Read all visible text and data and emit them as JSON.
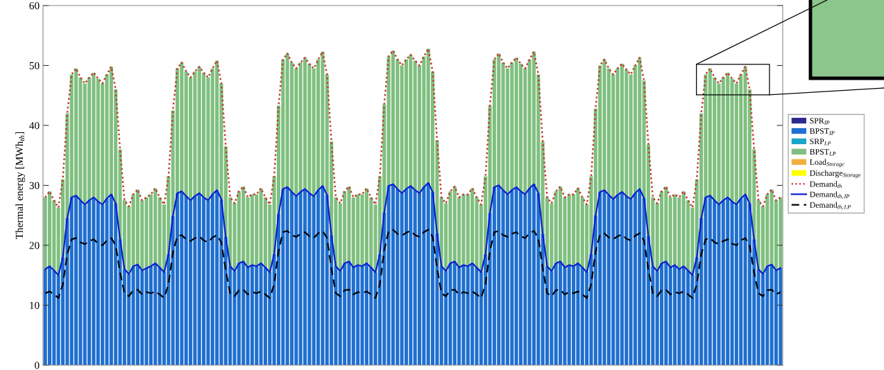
{
  "chart_data": {
    "type": "bar",
    "stacked": true,
    "ylabel": "Thermal energy [MWh$_{th}$]",
    "categories": [
      null,
      null,
      null,
      null,
      null,
      null,
      null,
      null,
      null,
      null,
      null,
      null,
      null,
      null,
      null,
      null,
      null,
      null,
      null,
      null,
      null,
      null,
      null,
      null,
      null,
      null,
      null,
      null,
      null,
      null,
      null,
      null,
      null,
      null,
      null,
      null,
      null,
      null,
      null,
      null,
      null,
      null,
      null,
      null,
      null,
      null,
      null,
      null,
      null,
      null,
      null,
      null,
      null,
      null,
      null,
      null,
      null,
      null,
      null,
      null,
      null,
      null,
      null,
      null,
      null,
      null,
      null,
      null,
      null,
      null,
      null,
      null,
      null,
      null,
      null,
      null,
      null,
      null,
      null,
      null,
      null,
      null,
      null,
      null,
      null,
      null,
      null,
      null,
      null,
      null,
      null,
      null,
      null,
      null,
      null,
      null,
      null,
      null,
      null,
      null,
      null,
      null,
      null,
      null,
      null,
      null,
      null,
      null,
      null,
      null,
      null,
      null,
      null,
      null,
      null,
      null,
      null,
      null,
      null,
      null,
      null,
      null,
      null,
      null,
      null,
      null,
      null,
      null,
      null,
      null,
      null,
      null,
      null,
      null,
      null,
      null,
      null,
      null,
      null,
      null,
      null,
      null,
      null,
      null,
      null,
      null,
      null,
      null,
      null,
      null,
      null,
      null,
      null,
      null,
      null,
      null,
      null,
      null,
      null,
      null,
      null,
      null,
      null,
      null,
      null,
      null,
      null,
      null
    ],
    "ylim": [
      0,
      60
    ],
    "yticks": [
      0,
      10,
      20,
      30,
      40,
      50,
      60
    ],
    "grid": false,
    "legend": "right",
    "marker": "none",
    "series": [
      {
        "name": "SPR$_{IP}$",
        "color": "#2e2a8c",
        "values": [
          0,
          0,
          0,
          0,
          0,
          0,
          0,
          0,
          0,
          0,
          0,
          0,
          0,
          0,
          0,
          0,
          0,
          0,
          0,
          0,
          0,
          0,
          0,
          0,
          0,
          0,
          0,
          0,
          0,
          0,
          0,
          0,
          0,
          0,
          0,
          0,
          0,
          0,
          0,
          0,
          0,
          0,
          0,
          0,
          0,
          0,
          0,
          0,
          0,
          0,
          0,
          0,
          0,
          0,
          0,
          0,
          0,
          0,
          0,
          0,
          0,
          0,
          0,
          0,
          0,
          0,
          0,
          0,
          0,
          0,
          0,
          0,
          0,
          0,
          0,
          0,
          0,
          0,
          0,
          0,
          0,
          0,
          0,
          0,
          0,
          0,
          0,
          0,
          0,
          0,
          0,
          0,
          0,
          0,
          0,
          0,
          0,
          0,
          0,
          0,
          0,
          0,
          0,
          0,
          0,
          0,
          0,
          0,
          0,
          0,
          0,
          0,
          0,
          0,
          0,
          0,
          0,
          0,
          0,
          0,
          0,
          0,
          0,
          0,
          0,
          0,
          0,
          0,
          0,
          0,
          0,
          0,
          0,
          0,
          0,
          0,
          0,
          0,
          0,
          0,
          0,
          0,
          0,
          0,
          0,
          0,
          0,
          0,
          0,
          0,
          0,
          0,
          0,
          0,
          0,
          0,
          0,
          0,
          0,
          0,
          0,
          0,
          0,
          0,
          0,
          0,
          0,
          0
        ]
      },
      {
        "name": "BPST$_{IP}$",
        "color": "#1f6fd0",
        "values": [
          16,
          16.5,
          15.8,
          15,
          18,
          24.5,
          28,
          28.3,
          27.5,
          26.8,
          27.5,
          28,
          27.3,
          26.8,
          27.8,
          28.5,
          27,
          21,
          16,
          15.2,
          16.5,
          16.8,
          15.8,
          16.2,
          16.5,
          17,
          16.3,
          15.5,
          18.5,
          24.9,
          28.7,
          29,
          28.2,
          27.5,
          28.2,
          28.7,
          28,
          27.5,
          28.5,
          29.2,
          27.7,
          21.4,
          16.5,
          15.7,
          17,
          17.3,
          16.3,
          16.7,
          16.5,
          17,
          16.3,
          15.5,
          18.5,
          25.2,
          29.4,
          29.7,
          28.9,
          28.2,
          28.9,
          29.4,
          28.7,
          28.2,
          29.2,
          29.9,
          28.4,
          21.7,
          16.5,
          15.7,
          17,
          17.3,
          16.3,
          16.7,
          16.5,
          17,
          16.3,
          15.5,
          18.5,
          25.5,
          29.9,
          30.2,
          29.4,
          28.7,
          29.4,
          29.9,
          29.2,
          28.7,
          29.7,
          30.4,
          28.9,
          22,
          16.5,
          15.7,
          17,
          17.3,
          16.3,
          16.7,
          16.5,
          17,
          16.3,
          15.5,
          18.5,
          25.4,
          29.7,
          30,
          29.2,
          28.5,
          29.2,
          29.7,
          29,
          28.5,
          29.5,
          30.2,
          28.7,
          21.9,
          16.5,
          15.7,
          17,
          17.3,
          16.3,
          16.7,
          16.5,
          17,
          16.3,
          15.5,
          18.5,
          25,
          28.9,
          29.2,
          28.4,
          27.7,
          28.4,
          28.9,
          28.2,
          27.7,
          28.7,
          29.4,
          27.9,
          21.5,
          16.5,
          15.7,
          17,
          17.3,
          16.3,
          16.7,
          16,
          16.5,
          15.8,
          15,
          18,
          24.5,
          28,
          28.3,
          27.5,
          26.8,
          27.5,
          28,
          27.3,
          26.8,
          27.8,
          28.5,
          27,
          21,
          16,
          15.2,
          16.5,
          16.8,
          15.8,
          16.2
        ]
      },
      {
        "name": "SRP$_{LP}$",
        "color": "#1aa6c8",
        "values": [
          0,
          0,
          0,
          0,
          0,
          0,
          0,
          0,
          0,
          0,
          0,
          0,
          0,
          0,
          0,
          0,
          0,
          0,
          0,
          0,
          0,
          0,
          0,
          0,
          0,
          0,
          0,
          0,
          0,
          0,
          0,
          0,
          0,
          0,
          0,
          0,
          0,
          0,
          0,
          0,
          0,
          0,
          0,
          0,
          0,
          0,
          0,
          0,
          0,
          0,
          0,
          0,
          0,
          0,
          0,
          0,
          0,
          0,
          0,
          0,
          0,
          0,
          0,
          0,
          0,
          0,
          0,
          0,
          0,
          0,
          0,
          0,
          0,
          0,
          0,
          0,
          0,
          0,
          0,
          0,
          0,
          0,
          0,
          0,
          0,
          0,
          0,
          0,
          0,
          0,
          0,
          0,
          0,
          0,
          0,
          0,
          0,
          0,
          0,
          0,
          0,
          0,
          0,
          0,
          0,
          0,
          0,
          0,
          0,
          0,
          0,
          0,
          0,
          0,
          0,
          0,
          0,
          0,
          0,
          0,
          0,
          0,
          0,
          0,
          0,
          0,
          0,
          0,
          0,
          0,
          0,
          0,
          0,
          0,
          0,
          0,
          0,
          0,
          0,
          0,
          0,
          0,
          0,
          0,
          0,
          0,
          0,
          0,
          0,
          0,
          0,
          0,
          0,
          0,
          0,
          0,
          0,
          0,
          0,
          0,
          0,
          0,
          0,
          0,
          0,
          0,
          0,
          0
        ]
      },
      {
        "name": "BPST$_{LP}$",
        "color": "#7fbf7f",
        "values": [
          12,
          12.5,
          11.7,
          11.3,
          13,
          17.5,
          20.5,
          21.2,
          20.5,
          20.2,
          20.5,
          20.8,
          20.5,
          20.2,
          20.7,
          21.3,
          19,
          15,
          11.5,
          11.3,
          12,
          12.5,
          11.7,
          11.8,
          12,
          12.5,
          11.7,
          11.3,
          13,
          17.6,
          20.8,
          21.5,
          20.8,
          20.5,
          20.8,
          21.1,
          20.8,
          20.5,
          21,
          21.6,
          19.3,
          15.1,
          11.5,
          11.3,
          12,
          12.5,
          11.7,
          11.8,
          12,
          12.5,
          11.7,
          11.3,
          13,
          18.1,
          21.6,
          22.3,
          21.6,
          21.3,
          21.6,
          21.9,
          21.6,
          21.3,
          21.8,
          22.4,
          20.1,
          15.6,
          11.5,
          11.3,
          12,
          12.5,
          11.7,
          11.8,
          12,
          12.5,
          11.7,
          11.3,
          13,
          18,
          21.6,
          22.3,
          21.6,
          21.3,
          21.6,
          21.9,
          21.6,
          21.3,
          21.8,
          22.4,
          20.1,
          15.5,
          11.5,
          11.3,
          12,
          12.5,
          11.7,
          11.8,
          12,
          12.5,
          11.7,
          11.3,
          13,
          17.9,
          21.3,
          22,
          21.3,
          21,
          21.3,
          21.6,
          21.3,
          21,
          21.5,
          22.1,
          19.8,
          15.4,
          11.5,
          11.3,
          12,
          12.5,
          11.7,
          11.8,
          12,
          12.5,
          11.7,
          11.3,
          13,
          17.8,
          21.1,
          21.8,
          21.1,
          20.8,
          21.1,
          21.4,
          21.1,
          20.8,
          21.3,
          21.9,
          19.6,
          15.3,
          11.5,
          11.3,
          12,
          12.5,
          11.7,
          11.8,
          12,
          12.5,
          11.7,
          11.3,
          13,
          17.5,
          20.5,
          21.2,
          20.5,
          20.2,
          20.5,
          20.8,
          20.5,
          20.2,
          20.7,
          21.3,
          19,
          15,
          11.5,
          11.3,
          12,
          12.5,
          11.7,
          11.8
        ]
      },
      {
        "name": "Load$_{Storage}$",
        "color": "#f0b040",
        "values": [
          0,
          0,
          0,
          0,
          0,
          0,
          0,
          0,
          0,
          0,
          0,
          0,
          0,
          0,
          0,
          0,
          0,
          0,
          0,
          0,
          0,
          0,
          0,
          0,
          0,
          0,
          0,
          0,
          0,
          0,
          0,
          0,
          0,
          0,
          0,
          0,
          0,
          0,
          0,
          0,
          0,
          0,
          0,
          0,
          0,
          0,
          0,
          0,
          0,
          0,
          0,
          0,
          0,
          0,
          0,
          0,
          0,
          0,
          0,
          0,
          0,
          0,
          0,
          0,
          0,
          0,
          0,
          0,
          0,
          0,
          0,
          0,
          0,
          0,
          0,
          0,
          0,
          0,
          0,
          0,
          0,
          0,
          0,
          0,
          0,
          0,
          0,
          0,
          0,
          0,
          0,
          0,
          0,
          0,
          0,
          0,
          0,
          0,
          0,
          0,
          0,
          0,
          0,
          0,
          0,
          0,
          0,
          0,
          0,
          0,
          0,
          0,
          0,
          0,
          0,
          0,
          0,
          0,
          0,
          0,
          0,
          0,
          0,
          0,
          0,
          0,
          0,
          0,
          0,
          0,
          0,
          0,
          0,
          0,
          0,
          0,
          0,
          0,
          0,
          0,
          0,
          0,
          0,
          0,
          0,
          0,
          0,
          0,
          0,
          0,
          0,
          0,
          0,
          0,
          0,
          0,
          0,
          0,
          0,
          0,
          0,
          0,
          0,
          0,
          0,
          0,
          0,
          0
        ]
      },
      {
        "name": "Discharge$_{Storage}$",
        "color": "#ffff00",
        "values": [
          0,
          0,
          0,
          0,
          0,
          0,
          0,
          0,
          0,
          0,
          0,
          0,
          0,
          0,
          0,
          0,
          0,
          0,
          0,
          0,
          0,
          0,
          0,
          0,
          0,
          0,
          0,
          0,
          0,
          0,
          0,
          0,
          0,
          0,
          0,
          0,
          0,
          0,
          0,
          0,
          0,
          0,
          0,
          0,
          0,
          0,
          0,
          0,
          0,
          0,
          0,
          0,
          0,
          0,
          0,
          0,
          0,
          0,
          0,
          0,
          0,
          0,
          0,
          0,
          0,
          0,
          0,
          0,
          0,
          0,
          0,
          0,
          0,
          0,
          0,
          0,
          0,
          0,
          0,
          0,
          0,
          0,
          0,
          0,
          0,
          0,
          0,
          0,
          0,
          0,
          0,
          0,
          0,
          0,
          0,
          0,
          0,
          0,
          0,
          0,
          0,
          0,
          0,
          0,
          0,
          0,
          0,
          0,
          0,
          0,
          0,
          0,
          0,
          0,
          0,
          0,
          0,
          0,
          0,
          0,
          0,
          0,
          0,
          0,
          0,
          0,
          0,
          0,
          0,
          0,
          0,
          0,
          0,
          0,
          0,
          0,
          0,
          0,
          0,
          0,
          0,
          0,
          0,
          0,
          0,
          0,
          0,
          0,
          0,
          0,
          0,
          0,
          0,
          0,
          0,
          0,
          0,
          0,
          0,
          0,
          0,
          0,
          0,
          0,
          0,
          0,
          0,
          0
        ]
      },
      {
        "name": "Demand$_{th}$",
        "type": "line",
        "line_style": "dotted",
        "color": "#c0392b",
        "values": [
          28,
          29,
          27.5,
          26.3,
          31,
          42,
          48.5,
          49.5,
          48,
          47,
          48,
          48.8,
          47.8,
          47,
          48.5,
          49.8,
          46,
          36,
          27.5,
          26.5,
          28.5,
          29.3,
          27.5,
          28,
          28.5,
          29.5,
          28,
          26.8,
          31.5,
          42.5,
          49.5,
          50.5,
          49,
          48,
          49,
          49.8,
          48.8,
          48,
          49.5,
          50.8,
          47,
          36.5,
          28,
          27,
          29,
          29.8,
          28,
          28.5,
          28.5,
          29.5,
          28,
          26.8,
          31.5,
          43.3,
          51,
          52,
          50.5,
          49.5,
          50.5,
          51.3,
          50.3,
          49.5,
          51,
          52.3,
          48.5,
          37.3,
          28,
          27,
          29,
          29.8,
          28,
          28.5,
          28.5,
          29.5,
          28,
          26.8,
          31.5,
          43.5,
          51.5,
          52.5,
          51,
          50,
          51,
          51.8,
          50.8,
          50,
          51.5,
          52.8,
          49,
          37.5,
          28,
          27,
          29,
          29.8,
          28,
          28.5,
          28.5,
          29.5,
          28,
          26.8,
          31.5,
          43.3,
          51,
          52,
          50.5,
          49.5,
          50.5,
          51.3,
          50.3,
          49.5,
          51,
          52.3,
          48.5,
          37.3,
          28,
          27,
          29,
          29.8,
          28,
          28.5,
          28.5,
          29.5,
          28,
          26.8,
          31.5,
          42.8,
          50,
          51,
          49.5,
          48.5,
          49.5,
          50.3,
          49.3,
          48.5,
          50,
          51.3,
          47.5,
          36.8,
          28,
          27,
          29,
          29.8,
          28,
          28.5,
          28,
          29,
          27.5,
          26.3,
          31,
          42,
          48.5,
          49.5,
          48,
          47,
          48,
          48.8,
          47.8,
          47,
          48.5,
          49.8,
          46,
          36,
          27.5,
          26.5,
          28.5,
          29.3,
          27.5,
          28
        ]
      },
      {
        "name": "Demand$_{th,IP}$",
        "type": "line",
        "line_style": "solid",
        "color": "#0a1fd1",
        "values": [
          16,
          16.5,
          15.8,
          15,
          18,
          24.5,
          28,
          28.3,
          27.5,
          26.8,
          27.5,
          28,
          27.3,
          26.8,
          27.8,
          28.5,
          27,
          21,
          16,
          15.2,
          16.5,
          16.8,
          15.8,
          16.2,
          16.5,
          17,
          16.3,
          15.5,
          18.5,
          24.9,
          28.7,
          29,
          28.2,
          27.5,
          28.2,
          28.7,
          28,
          27.5,
          28.5,
          29.2,
          27.7,
          21.4,
          16.5,
          15.7,
          17,
          17.3,
          16.3,
          16.7,
          16.5,
          17,
          16.3,
          15.5,
          18.5,
          25.2,
          29.4,
          29.7,
          28.9,
          28.2,
          28.9,
          29.4,
          28.7,
          28.2,
          29.2,
          29.9,
          28.4,
          21.7,
          16.5,
          15.7,
          17,
          17.3,
          16.3,
          16.7,
          16.5,
          17,
          16.3,
          15.5,
          18.5,
          25.5,
          29.9,
          30.2,
          29.4,
          28.7,
          29.4,
          29.9,
          29.2,
          28.7,
          29.7,
          30.4,
          28.9,
          22,
          16.5,
          15.7,
          17,
          17.3,
          16.3,
          16.7,
          16.5,
          17,
          16.3,
          15.5,
          18.5,
          25.4,
          29.7,
          30,
          29.2,
          28.5,
          29.2,
          29.7,
          29,
          28.5,
          29.5,
          30.2,
          28.7,
          21.9,
          16.5,
          15.7,
          17,
          17.3,
          16.3,
          16.7,
          16.5,
          17,
          16.3,
          15.5,
          18.5,
          25,
          28.9,
          29.2,
          28.4,
          27.7,
          28.4,
          28.9,
          28.2,
          27.7,
          28.7,
          29.4,
          27.9,
          21.5,
          16.5,
          15.7,
          17,
          17.3,
          16.3,
          16.7,
          16,
          16.5,
          15.8,
          15,
          18,
          24.5,
          28,
          28.3,
          27.5,
          26.8,
          27.5,
          28,
          27.3,
          26.8,
          27.8,
          28.5,
          27,
          21,
          16,
          15.2,
          16.5,
          16.8,
          15.8,
          16.2
        ]
      },
      {
        "name": "Demand$_{th,LP}$",
        "type": "line",
        "line_style": "dashed",
        "color": "#000000",
        "values": [
          12,
          12.3,
          11.8,
          11.2,
          13.5,
          18.5,
          21,
          21.2,
          20.5,
          20.2,
          20.7,
          21,
          20.3,
          20,
          20.8,
          21.2,
          20,
          15.5,
          12,
          11.5,
          12.5,
          12.6,
          11.8,
          12.2,
          12,
          12.3,
          11.8,
          11.2,
          13.5,
          18.8,
          21.5,
          21.7,
          21,
          20.7,
          21.2,
          21.5,
          20.8,
          20.5,
          21.3,
          21.7,
          20.5,
          15.8,
          12,
          11.5,
          12.5,
          12.6,
          11.8,
          12.2,
          12,
          12.3,
          11.8,
          11.2,
          13.5,
          19.1,
          22.2,
          22.4,
          21.7,
          21.4,
          21.9,
          22.2,
          21.5,
          21.2,
          22,
          22.4,
          21.2,
          16.1,
          12,
          11.5,
          12.5,
          12.6,
          11.8,
          12.2,
          12,
          12.3,
          11.8,
          11.2,
          13.5,
          19.2,
          22.4,
          22.6,
          21.9,
          21.6,
          22.1,
          22.4,
          21.7,
          21.4,
          22.2,
          22.6,
          21.4,
          16.2,
          12,
          11.5,
          12.5,
          12.6,
          11.8,
          12.2,
          12,
          12.3,
          11.8,
          11.2,
          13.5,
          19.1,
          22.2,
          22.4,
          21.7,
          21.4,
          21.9,
          22.2,
          21.5,
          21.2,
          22,
          22.4,
          21.2,
          16.1,
          12,
          11.5,
          12.5,
          12.6,
          11.8,
          12.2,
          12,
          12.3,
          11.8,
          11.2,
          13.5,
          18.9,
          21.8,
          22,
          21.3,
          21,
          21.5,
          21.8,
          21.1,
          20.8,
          21.6,
          22,
          20.8,
          15.9,
          12,
          11.5,
          12.5,
          12.6,
          11.8,
          12.2,
          12,
          12.3,
          11.8,
          11.2,
          13.5,
          18.5,
          21,
          21.2,
          20.5,
          20.2,
          20.7,
          21,
          20.3,
          20,
          20.8,
          21.2,
          20,
          15.5,
          12,
          11.5,
          12.5,
          12.6,
          11.8,
          12.2
        ]
      }
    ]
  }
}
